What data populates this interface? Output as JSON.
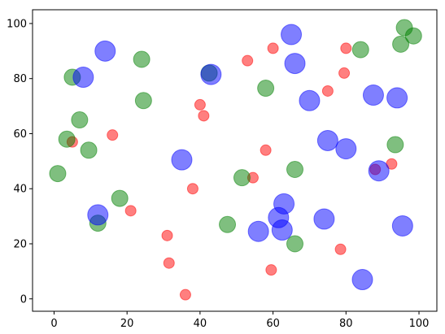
{
  "chart_data": {
    "type": "scatter",
    "title": "",
    "xlabel": "",
    "ylabel": "",
    "xlim": [
      -5.9,
      104.9
    ],
    "ylim": [
      -4.5,
      105
    ],
    "xticks": [
      0,
      20,
      40,
      60,
      80,
      100
    ],
    "yticks": [
      0,
      20,
      40,
      60,
      80,
      100
    ],
    "xtick_labels": [
      "0",
      "20",
      "40",
      "60",
      "80",
      "100"
    ],
    "ytick_labels": [
      "0",
      "20",
      "40",
      "60",
      "80",
      "100"
    ],
    "grid": false,
    "series": [
      {
        "color": "#ff0000",
        "alpha": 0.5,
        "marker_size": "small",
        "points": [
          {
            "x": 5,
            "y": 57
          },
          {
            "x": 16,
            "y": 59.5
          },
          {
            "x": 21,
            "y": 32
          },
          {
            "x": 31,
            "y": 23
          },
          {
            "x": 31.5,
            "y": 13
          },
          {
            "x": 36,
            "y": 1.5
          },
          {
            "x": 38,
            "y": 40
          },
          {
            "x": 40,
            "y": 70.5
          },
          {
            "x": 41,
            "y": 66.5
          },
          {
            "x": 53,
            "y": 86.5
          },
          {
            "x": 54.5,
            "y": 44
          },
          {
            "x": 58,
            "y": 54
          },
          {
            "x": 59.5,
            "y": 10.5
          },
          {
            "x": 60,
            "y": 91
          },
          {
            "x": 75,
            "y": 75.5
          },
          {
            "x": 78.5,
            "y": 18
          },
          {
            "x": 79.5,
            "y": 82
          },
          {
            "x": 80,
            "y": 91
          },
          {
            "x": 88,
            "y": 47
          },
          {
            "x": 92.5,
            "y": 49
          }
        ]
      },
      {
        "color": "#008000",
        "alpha": 0.5,
        "marker_size": "medium",
        "points": [
          {
            "x": 1,
            "y": 45.5
          },
          {
            "x": 3.5,
            "y": 58
          },
          {
            "x": 5,
            "y": 80.5
          },
          {
            "x": 7,
            "y": 65
          },
          {
            "x": 9.5,
            "y": 54
          },
          {
            "x": 12,
            "y": 27.5
          },
          {
            "x": 18,
            "y": 36.5
          },
          {
            "x": 24,
            "y": 87
          },
          {
            "x": 24.5,
            "y": 72
          },
          {
            "x": 42.5,
            "y": 82
          },
          {
            "x": 47.5,
            "y": 27
          },
          {
            "x": 51.5,
            "y": 44
          },
          {
            "x": 58,
            "y": 76.5
          },
          {
            "x": 66,
            "y": 20
          },
          {
            "x": 66,
            "y": 47
          },
          {
            "x": 84,
            "y": 90.5
          },
          {
            "x": 93.5,
            "y": 56
          },
          {
            "x": 95,
            "y": 92.5
          },
          {
            "x": 96,
            "y": 98.5
          },
          {
            "x": 98.5,
            "y": 95.5
          }
        ]
      },
      {
        "color": "#0000ff",
        "alpha": 0.5,
        "marker_size": "large",
        "points": [
          {
            "x": 8,
            "y": 80.5
          },
          {
            "x": 12,
            "y": 30.5
          },
          {
            "x": 14,
            "y": 90
          },
          {
            "x": 35,
            "y": 50.5
          },
          {
            "x": 43,
            "y": 81.5
          },
          {
            "x": 56,
            "y": 24.5
          },
          {
            "x": 61.5,
            "y": 29.5
          },
          {
            "x": 62.5,
            "y": 25
          },
          {
            "x": 63,
            "y": 34.5
          },
          {
            "x": 65,
            "y": 96
          },
          {
            "x": 66,
            "y": 85.5
          },
          {
            "x": 70,
            "y": 72
          },
          {
            "x": 74,
            "y": 29
          },
          {
            "x": 75,
            "y": 57.5
          },
          {
            "x": 80,
            "y": 54.5
          },
          {
            "x": 84.5,
            "y": 7
          },
          {
            "x": 87.5,
            "y": 74
          },
          {
            "x": 89,
            "y": 46.5
          },
          {
            "x": 94,
            "y": 73
          },
          {
            "x": 95.5,
            "y": 26.5
          }
        ]
      }
    ]
  }
}
